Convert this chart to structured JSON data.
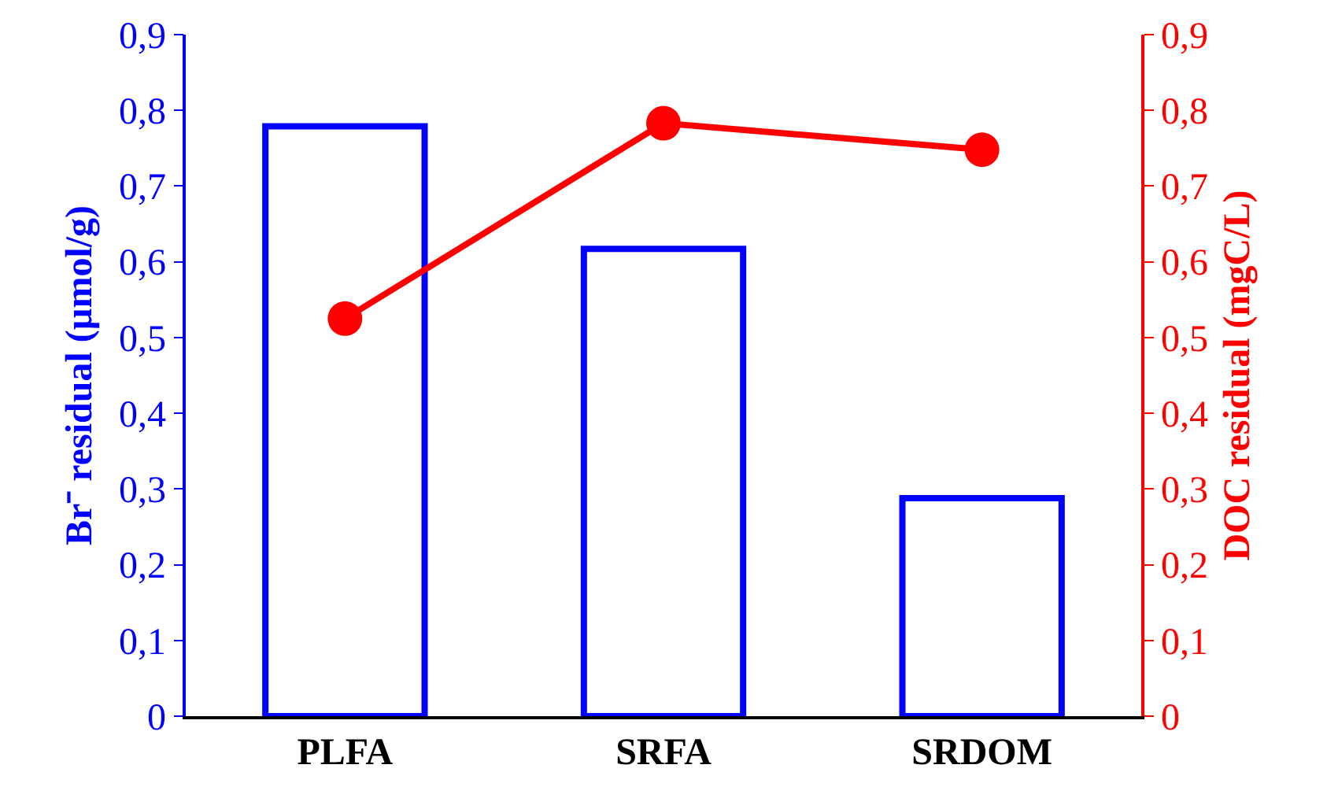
{
  "chart_data": {
    "type": "bar",
    "categories": [
      "PLFA",
      "SRFA",
      "SRDOM"
    ],
    "ylabel": "Br⁻ residual (µmol/g)",
    "y2label": "DOC residual (mgC/L)",
    "series": [
      {
        "color": "#0000ff",
        "values": [
          0.779,
          0.617,
          0.288
        ]
      },
      {
        "type": "line",
        "axis": "y2",
        "color": "#ff0000",
        "values": [
          0.525,
          0.783,
          0.748
        ]
      }
    ],
    "ylim": [
      0,
      0.9
    ],
    "yticks": [
      0,
      {
        "value": 0.1,
        "label": "0,1"
      },
      {
        "value": 0.2,
        "label": "0,2"
      },
      {
        "value": 0.3,
        "label": "0,3"
      },
      {
        "value": 0.4,
        "label": "0,4"
      },
      {
        "value": 0.5,
        "label": "0,5"
      },
      {
        "value": 0.6,
        "label": "0,6"
      },
      {
        "value": 0.7,
        "label": "0,7"
      },
      {
        "value": 0.8,
        "label": "0,8"
      },
      {
        "value": 0.9,
        "label": "0,9"
      }
    ],
    "y2lim": [
      0,
      0.9
    ],
    "y2ticks": [
      0,
      {
        "value": 0.1,
        "label": "0,1"
      },
      {
        "value": 0.2,
        "label": "0,2"
      },
      {
        "value": 0.3,
        "label": "0,3"
      },
      {
        "value": 0.4,
        "label": "0,4"
      },
      {
        "value": 0.5,
        "label": "0,5"
      },
      {
        "value": 0.6,
        "label": "0,6"
      },
      {
        "value": 0.7,
        "label": "0,7"
      },
      {
        "value": 0.8,
        "label": "0,8"
      },
      {
        "value": 0.9,
        "label": "0,9"
      }
    ],
    "grid": false,
    "marker": "circle",
    "line_style": "solid"
  }
}
